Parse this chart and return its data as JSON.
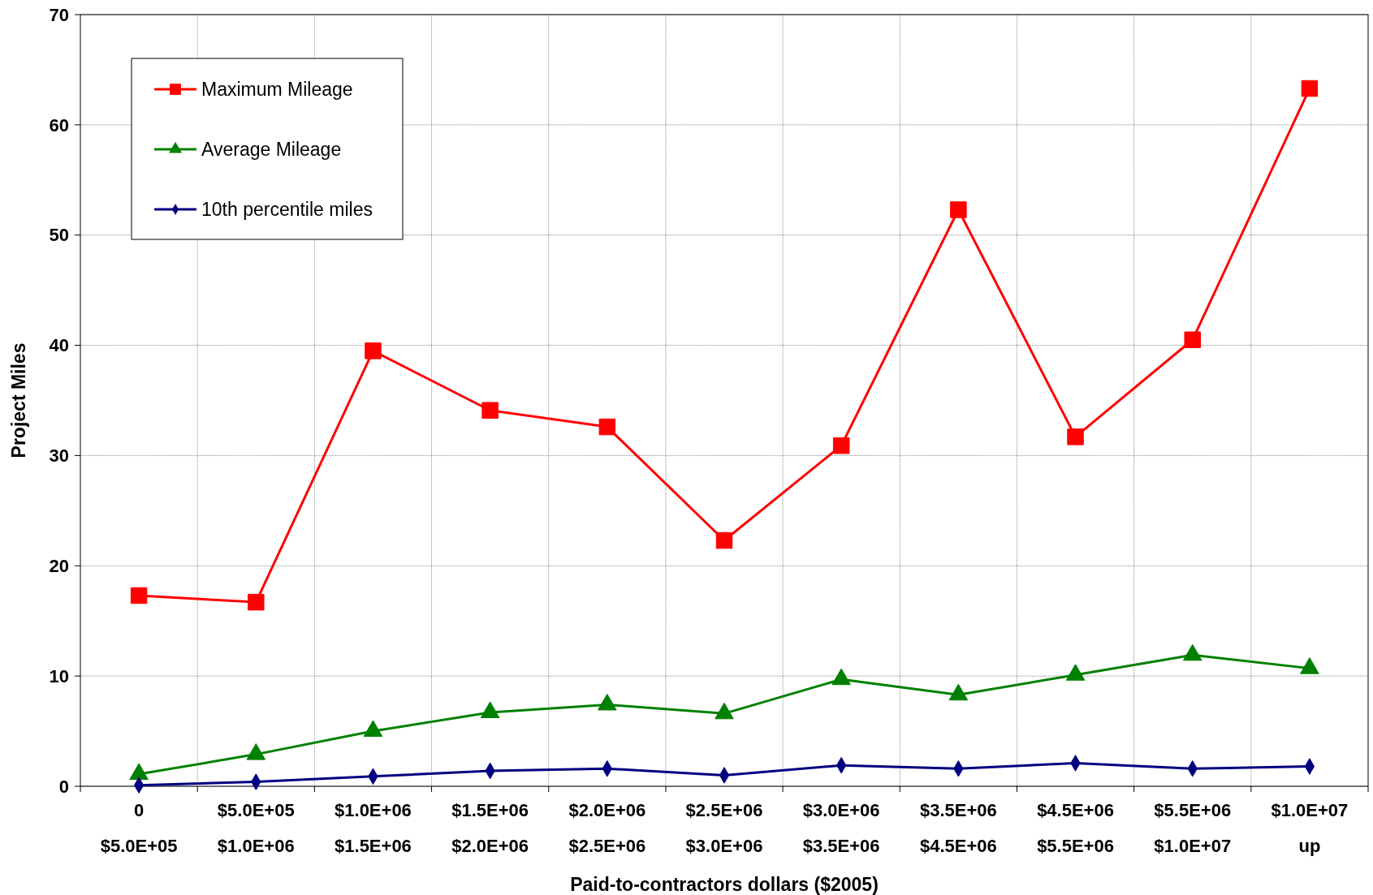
{
  "chart_data": {
    "type": "line",
    "xlabel": "Paid-to-contractors dollars ($2005)",
    "ylabel": "Project Miles",
    "categories": [
      "0\n$5.0E+05",
      "$5.0E+05\n$1.0E+06",
      "$1.0E+06\n$1.5E+06",
      "$1.5E+06\n$2.0E+06",
      "$2.0E+06\n$2.5E+06",
      "$2.5E+06\n$3.0E+06",
      "$3.0E+06\n$3.5E+06",
      "$3.5E+06\n$4.5E+06",
      "$4.5E+06\n$5.5E+06",
      "$5.5E+06\n$1.0E+07",
      "$1.0E+07\nup"
    ],
    "series": [
      {
        "name": "Maximum Mileage",
        "color": "#ff0000",
        "marker": "square",
        "values": [
          17.3,
          16.7,
          39.5,
          34.1,
          32.6,
          22.3,
          30.9,
          52.3,
          31.7,
          40.5,
          63.3
        ]
      },
      {
        "name": "Average Mileage",
        "color": "#008000",
        "marker": "triangle",
        "values": [
          1.1,
          2.9,
          5.0,
          6.7,
          7.4,
          6.6,
          9.7,
          8.3,
          10.1,
          11.9,
          10.7
        ]
      },
      {
        "name": "10th percentile miles",
        "color": "#000080",
        "marker": "diamond",
        "values": [
          0.1,
          0.4,
          0.9,
          1.4,
          1.6,
          1.0,
          1.9,
          1.6,
          2.1,
          1.6,
          1.8
        ]
      }
    ],
    "ylim": [
      0,
      70
    ],
    "yticks": [
      0,
      10,
      20,
      30,
      40,
      50,
      60,
      70
    ],
    "grid": true,
    "legend": "top left"
  }
}
